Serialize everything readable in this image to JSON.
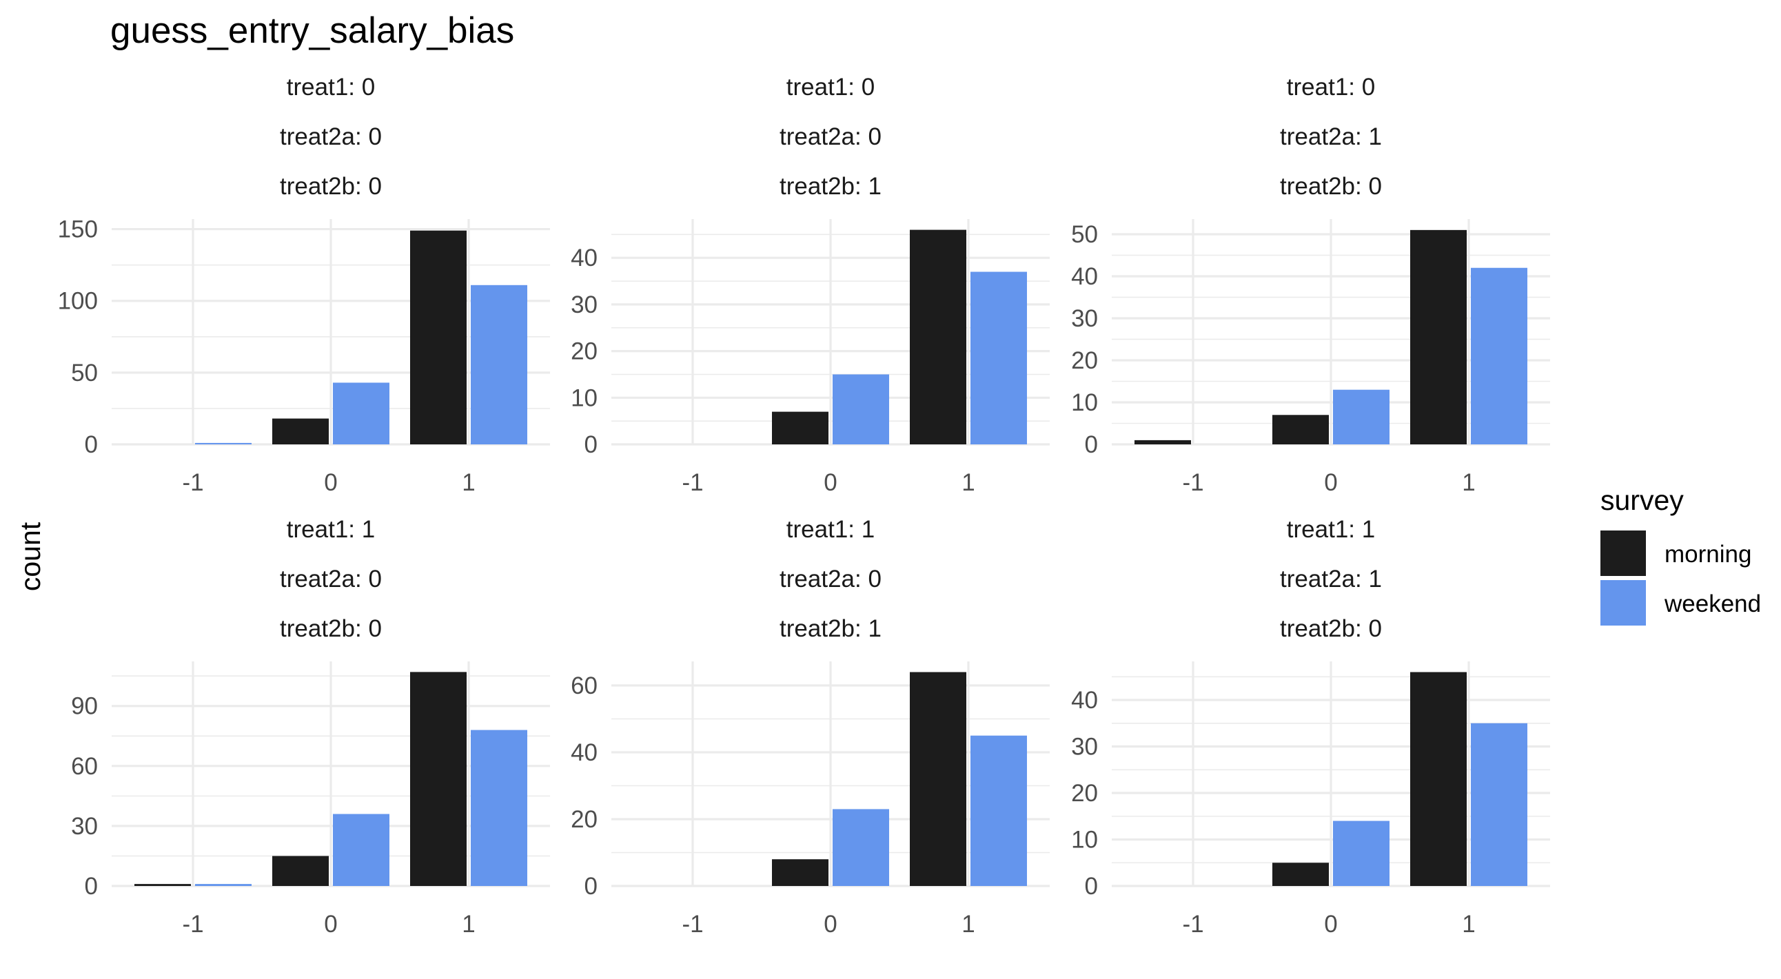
{
  "chart_data": {
    "type": "bar",
    "title": "guess_entry_salary_bias",
    "ylabel": "count",
    "xlabel": "",
    "categories": [
      "-1",
      "0",
      "1"
    ],
    "grid": true,
    "legend": {
      "title": "survey",
      "placement": "right",
      "entries": [
        {
          "name": "morning",
          "color": "#1c1c1c"
        },
        {
          "name": "weekend",
          "color": "#6495ed"
        }
      ]
    },
    "panels": [
      {
        "strip": [
          "treat1: 0",
          "treat2a: 0",
          "treat2b: 0"
        ],
        "ylim": [
          0,
          157
        ],
        "yticks": [
          0,
          50,
          100,
          150
        ],
        "series": [
          {
            "name": "morning",
            "values": [
              0,
              18,
              149
            ]
          },
          {
            "name": "weekend",
            "values": [
              1,
              43,
              111
            ]
          }
        ]
      },
      {
        "strip": [
          "treat1: 0",
          "treat2a: 0",
          "treat2b: 1"
        ],
        "ylim": [
          0,
          48.3
        ],
        "yticks": [
          0,
          10,
          20,
          30,
          40
        ],
        "series": [
          {
            "name": "morning",
            "values": [
              0,
              7,
              46
            ]
          },
          {
            "name": "weekend",
            "values": [
              0,
              15,
              37
            ]
          }
        ]
      },
      {
        "strip": [
          "treat1: 0",
          "treat2a: 1",
          "treat2b: 0"
        ],
        "ylim": [
          0,
          53.6
        ],
        "yticks": [
          0,
          10,
          20,
          30,
          40,
          50
        ],
        "series": [
          {
            "name": "morning",
            "values": [
              1,
              7,
              51
            ]
          },
          {
            "name": "weekend",
            "values": [
              0,
              13,
              42
            ]
          }
        ]
      },
      {
        "strip": [
          "treat1: 1",
          "treat2a: 0",
          "treat2b: 0"
        ],
        "ylim": [
          0,
          112.3
        ],
        "yticks": [
          0,
          30,
          60,
          90
        ],
        "series": [
          {
            "name": "morning",
            "values": [
              1,
              15,
              107
            ]
          },
          {
            "name": "weekend",
            "values": [
              1,
              36,
              78
            ]
          }
        ]
      },
      {
        "strip": [
          "treat1: 1",
          "treat2a: 0",
          "treat2b: 1"
        ],
        "ylim": [
          0,
          67.2
        ],
        "yticks": [
          0,
          20,
          40,
          60
        ],
        "series": [
          {
            "name": "morning",
            "values": [
              0,
              8,
              64
            ]
          },
          {
            "name": "weekend",
            "values": [
              0,
              23,
              45
            ]
          }
        ]
      },
      {
        "strip": [
          "treat1: 1",
          "treat2a: 1",
          "treat2b: 0"
        ],
        "ylim": [
          0,
          48.3
        ],
        "yticks": [
          0,
          10,
          20,
          30,
          40
        ],
        "series": [
          {
            "name": "morning",
            "values": [
              0,
              5,
              46
            ]
          },
          {
            "name": "weekend",
            "values": [
              0,
              14,
              35
            ]
          }
        ]
      }
    ]
  }
}
